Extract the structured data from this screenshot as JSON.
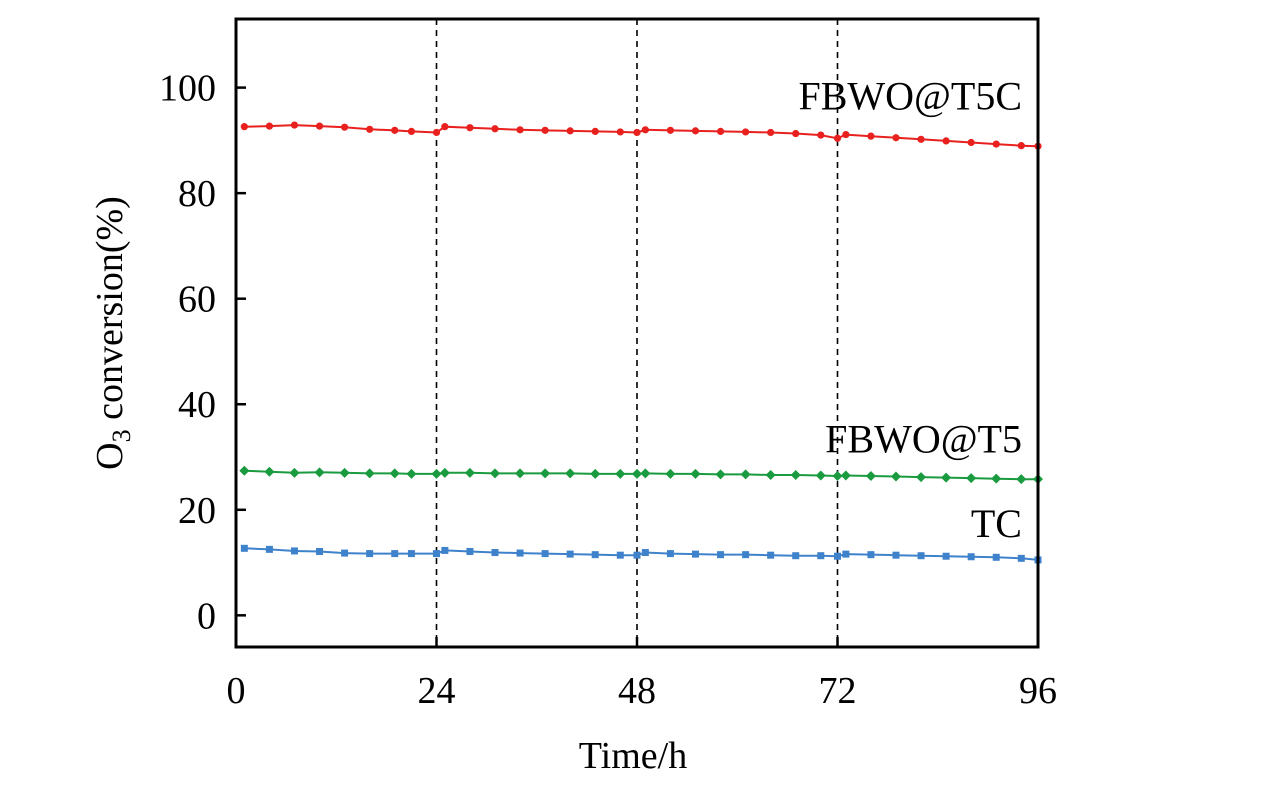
{
  "chart_data": {
    "type": "scatter",
    "title": "",
    "xlabel": "Time/h",
    "ylabel": {
      "prefix": "O",
      "subscript": "3",
      "suffix": " conversion(%)"
    },
    "xlim": [
      0,
      96
    ],
    "ylim": [
      -6,
      113
    ],
    "xticks": [
      0,
      24,
      48,
      72,
      96
    ],
    "yticks": [
      0,
      20,
      40,
      60,
      80,
      100
    ],
    "vlines": [
      24,
      48,
      72
    ],
    "grid": false,
    "legend": "inline labels",
    "series": [
      {
        "name": "FBWO@T5C",
        "color": "#e8201e",
        "marker": "circle",
        "x": [
          1,
          4,
          7,
          10,
          13,
          16,
          19,
          21,
          24,
          25,
          28,
          31,
          34,
          37,
          40,
          43,
          46,
          48,
          49,
          52,
          55,
          58,
          61,
          64,
          67,
          70,
          72,
          73,
          76,
          79,
          82,
          85,
          88,
          91,
          94,
          96
        ],
        "y": [
          92.6,
          92.7,
          92.9,
          92.7,
          92.5,
          92.1,
          91.9,
          91.7,
          91.5,
          92.6,
          92.4,
          92.2,
          92.0,
          91.9,
          91.8,
          91.7,
          91.6,
          91.5,
          92.0,
          91.9,
          91.8,
          91.7,
          91.6,
          91.5,
          91.3,
          91.0,
          90.4,
          91.1,
          90.8,
          90.5,
          90.2,
          89.9,
          89.6,
          89.3,
          89.0,
          88.9
        ]
      },
      {
        "name": "FBWO@T5",
        "color": "#1a9b3f",
        "marker": "diamond",
        "x": [
          1,
          4,
          7,
          10,
          13,
          16,
          19,
          21,
          24,
          25,
          28,
          31,
          34,
          37,
          40,
          43,
          46,
          48,
          49,
          52,
          55,
          58,
          61,
          64,
          67,
          70,
          72,
          73,
          76,
          79,
          82,
          85,
          88,
          91,
          94,
          96
        ],
        "y": [
          27.4,
          27.2,
          27.0,
          27.1,
          27.0,
          26.9,
          26.9,
          26.8,
          26.8,
          27.0,
          27.0,
          26.9,
          26.9,
          26.9,
          26.9,
          26.8,
          26.8,
          26.8,
          26.9,
          26.8,
          26.8,
          26.7,
          26.7,
          26.6,
          26.6,
          26.5,
          26.4,
          26.5,
          26.4,
          26.3,
          26.2,
          26.1,
          26.0,
          25.9,
          25.8,
          25.8
        ]
      },
      {
        "name": "TC",
        "color": "#3f82cc",
        "marker": "square",
        "x": [
          1,
          4,
          7,
          10,
          13,
          16,
          19,
          21,
          24,
          25,
          28,
          31,
          34,
          37,
          40,
          43,
          46,
          48,
          49,
          52,
          55,
          58,
          61,
          64,
          67,
          70,
          72,
          73,
          76,
          79,
          82,
          85,
          88,
          91,
          94,
          96
        ],
        "y": [
          12.7,
          12.5,
          12.2,
          12.1,
          11.8,
          11.7,
          11.7,
          11.7,
          11.7,
          12.3,
          12.1,
          11.9,
          11.8,
          11.7,
          11.6,
          11.5,
          11.4,
          11.4,
          11.9,
          11.7,
          11.6,
          11.5,
          11.5,
          11.4,
          11.3,
          11.3,
          11.2,
          11.6,
          11.5,
          11.4,
          11.3,
          11.2,
          11.1,
          11.0,
          10.8,
          10.5
        ]
      }
    ],
    "labels": [
      {
        "text": "FBWO@T5C",
        "x": 96,
        "y": 98.5
      },
      {
        "text": "FBWO@T5",
        "x": 96,
        "y": 33.5
      },
      {
        "text": "TC",
        "x": 96,
        "y": 17.5
      }
    ]
  }
}
